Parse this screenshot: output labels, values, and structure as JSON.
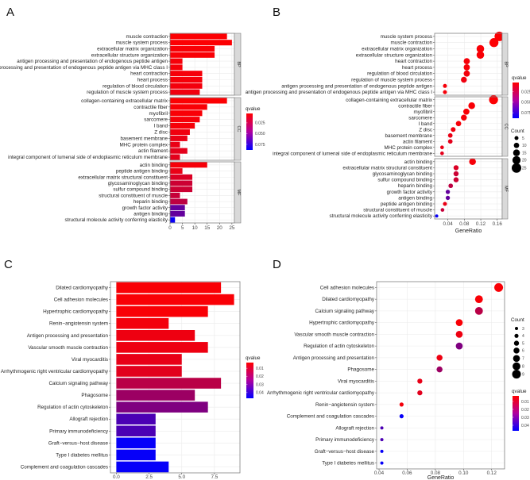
{
  "chart_data": [
    {
      "panel_label": "A",
      "type": "bar",
      "orientation": "horizontal",
      "xlabel": "",
      "xlim": [
        0,
        26
      ],
      "xticks": [
        {
          "value": 0,
          "label": "0"
        },
        {
          "value": 5,
          "label": "5"
        },
        {
          "value": 10,
          "label": "10"
        },
        {
          "value": 15,
          "label": "15"
        },
        {
          "value": 20,
          "label": "20"
        },
        {
          "value": 25,
          "label": "25"
        }
      ],
      "color_legend": {
        "title": "qvalue",
        "range": [
          0.003,
          0.088
        ],
        "ticks": [
          {
            "value": 0.025,
            "label": "0.025"
          },
          {
            "value": 0.05,
            "label": "0.050"
          },
          {
            "value": 0.075,
            "label": "0.075"
          }
        ]
      },
      "facets": [
        {
          "name": "BP",
          "items": [
            {
              "label": "muscle contraction",
              "value": 23,
              "qvalue": 0.004
            },
            {
              "label": "muscle system process",
              "value": 25,
              "qvalue": 0.004
            },
            {
              "label": "extracellular matrix organization",
              "value": 18,
              "qvalue": 0.005
            },
            {
              "label": "extracellular structure organization",
              "value": 18,
              "qvalue": 0.005
            },
            {
              "label": "antigen processing and presentation of endogenous peptide antigen",
              "value": 5,
              "qvalue": 0.006
            },
            {
              "label": "antigen processing and presentation of endogenous peptide antigen via MHC class I",
              "value": 5,
              "qvalue": 0.006
            },
            {
              "label": "heart contraction",
              "value": 13,
              "qvalue": 0.006
            },
            {
              "label": "heart process",
              "value": 13,
              "qvalue": 0.006
            },
            {
              "label": "regulation of blood circulation",
              "value": 13,
              "qvalue": 0.007
            },
            {
              "label": "regulation of muscle system process",
              "value": 12,
              "qvalue": 0.008
            }
          ]
        },
        {
          "name": "CC",
          "items": [
            {
              "label": "collagen-containing extracellular matrix",
              "value": 23,
              "qvalue": 0.004
            },
            {
              "label": "contractile fiber",
              "value": 15,
              "qvalue": 0.005
            },
            {
              "label": "myofibril",
              "value": 13,
              "qvalue": 0.005
            },
            {
              "label": "sarcomere",
              "value": 12,
              "qvalue": 0.006
            },
            {
              "label": "I band",
              "value": 10,
              "qvalue": 0.006
            },
            {
              "label": "Z disc",
              "value": 8,
              "qvalue": 0.008
            },
            {
              "label": "basement membrane",
              "value": 7,
              "qvalue": 0.01
            },
            {
              "label": "MHC protein complex",
              "value": 4,
              "qvalue": 0.01
            },
            {
              "label": "actin filament",
              "value": 7,
              "qvalue": 0.012
            },
            {
              "label": "integral component of lumenal side of endoplasmic reticulum membrane",
              "value": 4,
              "qvalue": 0.012
            }
          ]
        },
        {
          "name": "MF",
          "items": [
            {
              "label": "actin binding",
              "value": 15,
              "qvalue": 0.006
            },
            {
              "label": "peptide antigen binding",
              "value": 5,
              "qvalue": 0.01
            },
            {
              "label": "extracellular matrix structural constituent",
              "value": 9,
              "qvalue": 0.015
            },
            {
              "label": "glycosaminoglycan binding",
              "value": 9,
              "qvalue": 0.02
            },
            {
              "label": "sulfur compound binding",
              "value": 9,
              "qvalue": 0.02
            },
            {
              "label": "structural constituent of muscle",
              "value": 4,
              "qvalue": 0.022
            },
            {
              "label": "heparin binding",
              "value": 7,
              "qvalue": 0.025
            },
            {
              "label": "growth factor activity",
              "value": 6,
              "qvalue": 0.055
            },
            {
              "label": "antigen binding",
              "value": 6,
              "qvalue": 0.055
            },
            {
              "label": "structural molecule activity conferring elasticity",
              "value": 2,
              "qvalue": 0.085
            }
          ]
        }
      ]
    },
    {
      "panel_label": "B",
      "type": "scatter",
      "xlabel": "GeneRatio",
      "xlim": [
        0.008,
        0.172
      ],
      "xticks": [
        {
          "value": 0.04,
          "label": "0.04"
        },
        {
          "value": 0.08,
          "label": "0.08"
        },
        {
          "value": 0.12,
          "label": "0.12"
        },
        {
          "value": 0.16,
          "label": "0.16"
        }
      ],
      "color_legend": {
        "title": "qvalue",
        "range": [
          0.003,
          0.088
        ],
        "ticks": [
          {
            "value": 0.025,
            "label": "0.025"
          },
          {
            "value": 0.05,
            "label": "0.050"
          },
          {
            "value": 0.075,
            "label": "0.075"
          }
        ]
      },
      "size_legend": {
        "title": "Count",
        "values": [
          {
            "value": 5,
            "label": "5"
          },
          {
            "value": 10,
            "label": "10"
          },
          {
            "value": 15,
            "label": "15"
          },
          {
            "value": 20,
            "label": "20"
          },
          {
            "value": 25,
            "label": "25"
          }
        ]
      },
      "facets": [
        {
          "name": "BP",
          "items": [
            {
              "label": "muscle system process",
              "value": 0.165,
              "count": 25,
              "qvalue": 0.004
            },
            {
              "label": "muscle contraction",
              "value": 0.152,
              "count": 23,
              "qvalue": 0.004
            },
            {
              "label": "extracellular matrix organization",
              "value": 0.119,
              "count": 18,
              "qvalue": 0.005
            },
            {
              "label": "extracellular structure organization",
              "value": 0.119,
              "count": 18,
              "qvalue": 0.005
            },
            {
              "label": "heart contraction",
              "value": 0.086,
              "count": 13,
              "qvalue": 0.006
            },
            {
              "label": "heart process",
              "value": 0.086,
              "count": 13,
              "qvalue": 0.006
            },
            {
              "label": "regulation of blood circulation",
              "value": 0.086,
              "count": 13,
              "qvalue": 0.007
            },
            {
              "label": "regulation of muscle system process",
              "value": 0.079,
              "count": 12,
              "qvalue": 0.008
            },
            {
              "label": "antigen processing and presentation of endogenous peptide antigen",
              "value": 0.033,
              "count": 5,
              "qvalue": 0.006
            },
            {
              "label": "antigen processing and presentation of endogenous peptide antigen via MHC class I",
              "value": 0.033,
              "count": 5,
              "qvalue": 0.006
            }
          ]
        },
        {
          "name": "CC",
          "items": [
            {
              "label": "collagen-containing extracellular matrix",
              "value": 0.151,
              "count": 23,
              "qvalue": 0.004
            },
            {
              "label": "contractile fiber",
              "value": 0.098,
              "count": 15,
              "qvalue": 0.005
            },
            {
              "label": "myofibril",
              "value": 0.085,
              "count": 13,
              "qvalue": 0.005
            },
            {
              "label": "sarcomere",
              "value": 0.079,
              "count": 12,
              "qvalue": 0.006
            },
            {
              "label": "I band",
              "value": 0.066,
              "count": 10,
              "qvalue": 0.006
            },
            {
              "label": "Z disc",
              "value": 0.053,
              "count": 8,
              "qvalue": 0.008
            },
            {
              "label": "basement membrane",
              "value": 0.046,
              "count": 7,
              "qvalue": 0.01
            },
            {
              "label": "actin filament",
              "value": 0.046,
              "count": 7,
              "qvalue": 0.012
            },
            {
              "label": "MHC protein complex",
              "value": 0.026,
              "count": 4,
              "qvalue": 0.01
            },
            {
              "label": "integral component of lumenal side of endoplasmic reticulum membrane",
              "value": 0.026,
              "count": 4,
              "qvalue": 0.012
            }
          ]
        },
        {
          "name": "MF",
          "items": [
            {
              "label": "actin binding",
              "value": 0.1,
              "count": 15,
              "qvalue": 0.006
            },
            {
              "label": "extracellular matrix structural constituent",
              "value": 0.06,
              "count": 9,
              "qvalue": 0.015
            },
            {
              "label": "glycosaminoglycan binding",
              "value": 0.06,
              "count": 9,
              "qvalue": 0.02
            },
            {
              "label": "sulfur compound binding",
              "value": 0.06,
              "count": 9,
              "qvalue": 0.02
            },
            {
              "label": "heparin binding",
              "value": 0.047,
              "count": 7,
              "qvalue": 0.025
            },
            {
              "label": "growth factor activity",
              "value": 0.04,
              "count": 6,
              "qvalue": 0.055
            },
            {
              "label": "antigen binding",
              "value": 0.04,
              "count": 6,
              "qvalue": 0.055
            },
            {
              "label": "peptide antigen binding",
              "value": 0.033,
              "count": 5,
              "qvalue": 0.01
            },
            {
              "label": "structural constituent of muscle",
              "value": 0.027,
              "count": 4,
              "qvalue": 0.022
            },
            {
              "label": "structural molecule activity conferring elasticity",
              "value": 0.013,
              "count": 2,
              "qvalue": 0.085
            }
          ]
        }
      ]
    },
    {
      "panel_label": "C",
      "type": "bar",
      "orientation": "horizontal",
      "xlabel": "",
      "xlim": [
        -0.45,
        9.45
      ],
      "xticks": [
        {
          "value": 0,
          "label": "0.0"
        },
        {
          "value": 2.5,
          "label": "2.5"
        },
        {
          "value": 5,
          "label": "5.0"
        },
        {
          "value": 7.5,
          "label": "7.5"
        }
      ],
      "color_legend": {
        "title": "qvalue",
        "range": [
          0.003,
          0.047
        ],
        "ticks": [
          {
            "value": 0.01,
            "label": "0.01"
          },
          {
            "value": 0.02,
            "label": "0.02"
          },
          {
            "value": 0.03,
            "label": "0.03"
          },
          {
            "value": 0.04,
            "label": "0.04"
          }
        ]
      },
      "facets": [
        {
          "name": null,
          "items": [
            {
              "label": "Dilated cardiomyopathy",
              "value": 8,
              "qvalue": 0.004
            },
            {
              "label": "Cell adhesion molecules",
              "value": 9,
              "qvalue": 0.004
            },
            {
              "label": "Hypertrophic cardiomyopathy",
              "value": 7,
              "qvalue": 0.004
            },
            {
              "label": "Renin−angiotensin system",
              "value": 4,
              "qvalue": 0.005
            },
            {
              "label": "Antigen processing and presentation",
              "value": 6,
              "qvalue": 0.006
            },
            {
              "label": "Vascular smooth muscle contraction",
              "value": 7,
              "qvalue": 0.006
            },
            {
              "label": "Viral myocarditis",
              "value": 5,
              "qvalue": 0.007
            },
            {
              "label": "Arrhythmogenic right ventricular cardiomyopathy",
              "value": 5,
              "qvalue": 0.008
            },
            {
              "label": "Calcium signaling pathway",
              "value": 8,
              "qvalue": 0.015
            },
            {
              "label": "Phagosome",
              "value": 6,
              "qvalue": 0.02
            },
            {
              "label": "Regulation of actin cytoskeleton",
              "value": 7,
              "qvalue": 0.025
            },
            {
              "label": "Allograft rejection",
              "value": 3,
              "qvalue": 0.034
            },
            {
              "label": "Primary immunodeficiency",
              "value": 3,
              "qvalue": 0.034
            },
            {
              "label": "Graft−versus−host disease",
              "value": 3,
              "qvalue": 0.046
            },
            {
              "label": "Type I diabetes mellitus",
              "value": 3,
              "qvalue": 0.046
            },
            {
              "label": "Complement and coagulation cascades",
              "value": 4,
              "qvalue": 0.046
            }
          ]
        }
      ]
    },
    {
      "panel_label": "D",
      "type": "scatter",
      "xlabel": "GeneRatio",
      "xlim": [
        0.0383,
        0.1292
      ],
      "xticks": [
        {
          "value": 0.04,
          "label": "0.04"
        },
        {
          "value": 0.06,
          "label": "0.06"
        },
        {
          "value": 0.08,
          "label": "0.08"
        },
        {
          "value": 0.1,
          "label": "0.10"
        },
        {
          "value": 0.12,
          "label": "0.12"
        }
      ],
      "color_legend": {
        "title": "qvalue",
        "range": [
          0.003,
          0.047
        ],
        "ticks": [
          {
            "value": 0.01,
            "label": "0.01"
          },
          {
            "value": 0.02,
            "label": "0.02"
          },
          {
            "value": 0.03,
            "label": "0.03"
          },
          {
            "value": 0.04,
            "label": "0.04"
          }
        ]
      },
      "size_legend": {
        "title": "Count",
        "values": [
          {
            "value": 3,
            "label": "3"
          },
          {
            "value": 4,
            "label": "4"
          },
          {
            "value": 5,
            "label": "5"
          },
          {
            "value": 6,
            "label": "6"
          },
          {
            "value": 7,
            "label": "7"
          },
          {
            "value": 8,
            "label": "8"
          },
          {
            "value": 9,
            "label": "9"
          }
        ]
      },
      "facets": [
        {
          "name": null,
          "items": [
            {
              "label": "Cell adhesion molecules",
              "value": 0.125,
              "count": 9,
              "qvalue": 0.004
            },
            {
              "label": "Dilated cardiomyopathy",
              "value": 0.111,
              "count": 8,
              "qvalue": 0.004
            },
            {
              "label": "Calcium signaling pathway",
              "value": 0.111,
              "count": 8,
              "qvalue": 0.015
            },
            {
              "label": "Hypertrophic cardiomyopathy",
              "value": 0.097,
              "count": 7,
              "qvalue": 0.004
            },
            {
              "label": "Vascular smooth muscle contraction",
              "value": 0.097,
              "count": 7,
              "qvalue": 0.006
            },
            {
              "label": "Regulation of actin cytoskeleton",
              "value": 0.097,
              "count": 7,
              "qvalue": 0.025
            },
            {
              "label": "Antigen processing and presentation",
              "value": 0.083,
              "count": 6,
              "qvalue": 0.006
            },
            {
              "label": "Phagosome",
              "value": 0.083,
              "count": 6,
              "qvalue": 0.02
            },
            {
              "label": "Viral myocarditis",
              "value": 0.069,
              "count": 5,
              "qvalue": 0.007
            },
            {
              "label": "Arrhythmogenic right ventricular cardiomyopathy",
              "value": 0.069,
              "count": 5,
              "qvalue": 0.008
            },
            {
              "label": "Renin−angiotensin system",
              "value": 0.056,
              "count": 4,
              "qvalue": 0.005
            },
            {
              "label": "Complement and coagulation cascades",
              "value": 0.056,
              "count": 4,
              "qvalue": 0.046
            },
            {
              "label": "Allograft rejection",
              "value": 0.042,
              "count": 3,
              "qvalue": 0.034
            },
            {
              "label": "Primary immunodeficiency",
              "value": 0.042,
              "count": 3,
              "qvalue": 0.034
            },
            {
              "label": "Graft−versus−host disease",
              "value": 0.042,
              "count": 3,
              "qvalue": 0.046
            },
            {
              "label": "Type I diabetes mellitus",
              "value": 0.042,
              "count": 3,
              "qvalue": 0.046
            }
          ]
        }
      ]
    }
  ],
  "colors": {
    "low_q": "#ff0000",
    "high_q": "#0000ff",
    "grid": "#ebebeb",
    "strip": "#d9d9d9",
    "border": "#7f7f7f"
  }
}
